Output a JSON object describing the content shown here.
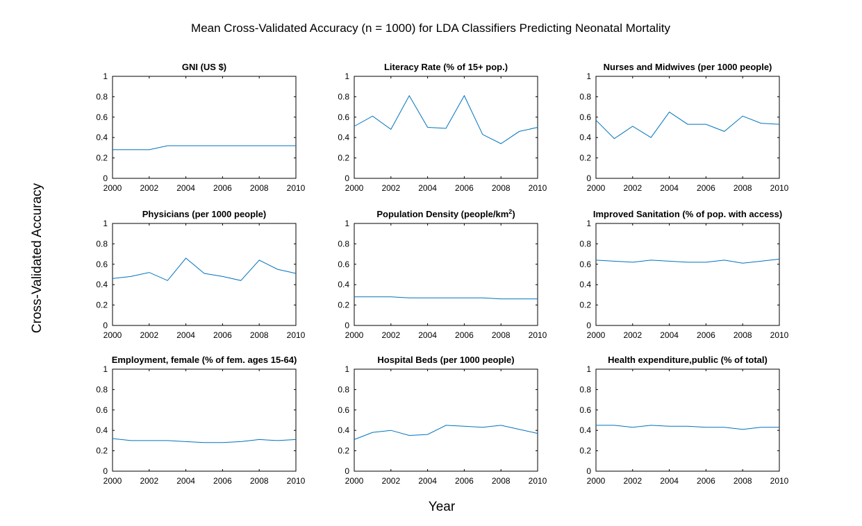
{
  "figure": {
    "title": "Mean Cross-Validated Accuracy (n = 1000) for LDA Classifiers Predicting Neonatal Mortality",
    "xlabel": "Year",
    "ylabel": "Cross-Validated Accuracy"
  },
  "colors": {
    "line": "#0072BD",
    "axis": "#000000"
  },
  "chart_data": [
    {
      "type": "line",
      "title": "GNI (US $)",
      "xlim": [
        2000,
        2010
      ],
      "ylim": [
        0,
        1
      ],
      "xticks": [
        2000,
        2002,
        2004,
        2006,
        2008,
        2010
      ],
      "yticks": [
        "0",
        "0.2",
        "0.4",
        "0.6",
        "0.8",
        "1"
      ],
      "x": [
        2000,
        2001,
        2002,
        2003,
        2004,
        2005,
        2006,
        2007,
        2008,
        2009,
        2010
      ],
      "series": [
        {
          "values": [
            0.28,
            0.28,
            0.28,
            0.32,
            0.32,
            0.32,
            0.32,
            0.32,
            0.32,
            0.32,
            0.32
          ]
        }
      ]
    },
    {
      "type": "line",
      "title": "Literacy Rate (% of 15+ pop.)",
      "xlim": [
        2000,
        2010
      ],
      "ylim": [
        0,
        1
      ],
      "xticks": [
        2000,
        2002,
        2004,
        2006,
        2008,
        2010
      ],
      "yticks": [
        "0",
        "0.2",
        "0.4",
        "0.6",
        "0.8",
        "1"
      ],
      "x": [
        2000,
        2001,
        2002,
        2003,
        2004,
        2005,
        2006,
        2007,
        2008,
        2009,
        2010
      ],
      "series": [
        {
          "values": [
            0.51,
            0.61,
            0.48,
            0.81,
            0.5,
            0.49,
            0.81,
            0.43,
            0.34,
            0.46,
            0.5
          ]
        }
      ]
    },
    {
      "type": "line",
      "title": "Nurses and Midwives (per 1000 people)",
      "xlim": [
        2000,
        2010
      ],
      "ylim": [
        0,
        1
      ],
      "xticks": [
        2000,
        2002,
        2004,
        2006,
        2008,
        2010
      ],
      "yticks": [
        "0",
        "0.2",
        "0.4",
        "0.6",
        "0.8",
        "1"
      ],
      "x": [
        2000,
        2001,
        2002,
        2003,
        2004,
        2005,
        2006,
        2007,
        2008,
        2009,
        2010
      ],
      "series": [
        {
          "values": [
            0.57,
            0.39,
            0.51,
            0.4,
            0.65,
            0.53,
            0.53,
            0.46,
            0.61,
            0.54,
            0.53
          ]
        }
      ]
    },
    {
      "type": "line",
      "title": "Physicians (per 1000 people)",
      "xlim": [
        2000,
        2010
      ],
      "ylim": [
        0,
        1
      ],
      "xticks": [
        2000,
        2002,
        2004,
        2006,
        2008,
        2010
      ],
      "yticks": [
        "0",
        "0.2",
        "0.4",
        "0.6",
        "0.8",
        "1"
      ],
      "x": [
        2000,
        2001,
        2002,
        2003,
        2004,
        2005,
        2006,
        2007,
        2008,
        2009,
        2010
      ],
      "series": [
        {
          "values": [
            0.46,
            0.48,
            0.52,
            0.44,
            0.66,
            0.51,
            0.48,
            0.44,
            0.64,
            0.55,
            0.51
          ]
        }
      ]
    },
    {
      "type": "line",
      "title": "Population Density (people/km",
      "title_sup": "2",
      "title_tail": ")",
      "xlim": [
        2000,
        2010
      ],
      "ylim": [
        0,
        1
      ],
      "xticks": [
        2000,
        2002,
        2004,
        2006,
        2008,
        2010
      ],
      "yticks": [
        "0",
        "0.2",
        "0.4",
        "0.6",
        "0.8",
        "1"
      ],
      "x": [
        2000,
        2001,
        2002,
        2003,
        2004,
        2005,
        2006,
        2007,
        2008,
        2009,
        2010
      ],
      "series": [
        {
          "values": [
            0.28,
            0.28,
            0.28,
            0.27,
            0.27,
            0.27,
            0.27,
            0.27,
            0.26,
            0.26,
            0.26
          ]
        }
      ]
    },
    {
      "type": "line",
      "title": "Improved Sanitation (% of pop. with access)",
      "xlim": [
        2000,
        2010
      ],
      "ylim": [
        0,
        1
      ],
      "xticks": [
        2000,
        2002,
        2004,
        2006,
        2008,
        2010
      ],
      "yticks": [
        "0",
        "0.2",
        "0.4",
        "0.6",
        "0.8",
        "1"
      ],
      "x": [
        2000,
        2001,
        2002,
        2003,
        2004,
        2005,
        2006,
        2007,
        2008,
        2009,
        2010
      ],
      "series": [
        {
          "values": [
            0.64,
            0.63,
            0.62,
            0.64,
            0.63,
            0.62,
            0.62,
            0.64,
            0.61,
            0.63,
            0.65
          ]
        }
      ]
    },
    {
      "type": "line",
      "title": "Employment, female (% of fem. ages 15-64)",
      "xlim": [
        2000,
        2010
      ],
      "ylim": [
        0,
        1
      ],
      "xticks": [
        2000,
        2002,
        2004,
        2006,
        2008,
        2010
      ],
      "yticks": [
        "0",
        "0.2",
        "0.4",
        "0.6",
        "0.8",
        "1"
      ],
      "x": [
        2000,
        2001,
        2002,
        2003,
        2004,
        2005,
        2006,
        2007,
        2008,
        2009,
        2010
      ],
      "series": [
        {
          "values": [
            0.32,
            0.3,
            0.3,
            0.3,
            0.29,
            0.28,
            0.28,
            0.29,
            0.31,
            0.3,
            0.31
          ]
        }
      ]
    },
    {
      "type": "line",
      "title": "Hospital Beds (per 1000 people)",
      "xlim": [
        2000,
        2010
      ],
      "ylim": [
        0,
        1
      ],
      "xticks": [
        2000,
        2002,
        2004,
        2006,
        2008,
        2010
      ],
      "yticks": [
        "0",
        "0.2",
        "0.4",
        "0.6",
        "0.8",
        "1"
      ],
      "x": [
        2000,
        2001,
        2002,
        2003,
        2004,
        2005,
        2006,
        2007,
        2008,
        2009,
        2010
      ],
      "series": [
        {
          "values": [
            0.31,
            0.38,
            0.4,
            0.35,
            0.36,
            0.45,
            0.44,
            0.43,
            0.45,
            0.41,
            0.37
          ]
        }
      ]
    },
    {
      "type": "line",
      "title": "Health expenditure,public (% of total)",
      "xlim": [
        2000,
        2010
      ],
      "ylim": [
        0,
        1
      ],
      "xticks": [
        2000,
        2002,
        2004,
        2006,
        2008,
        2010
      ],
      "yticks": [
        "0",
        "0.2",
        "0.4",
        "0.6",
        "0.8",
        "1"
      ],
      "x": [
        2000,
        2001,
        2002,
        2003,
        2004,
        2005,
        2006,
        2007,
        2008,
        2009,
        2010
      ],
      "series": [
        {
          "values": [
            0.45,
            0.45,
            0.43,
            0.45,
            0.44,
            0.44,
            0.43,
            0.43,
            0.41,
            0.43,
            0.43
          ]
        }
      ]
    }
  ]
}
